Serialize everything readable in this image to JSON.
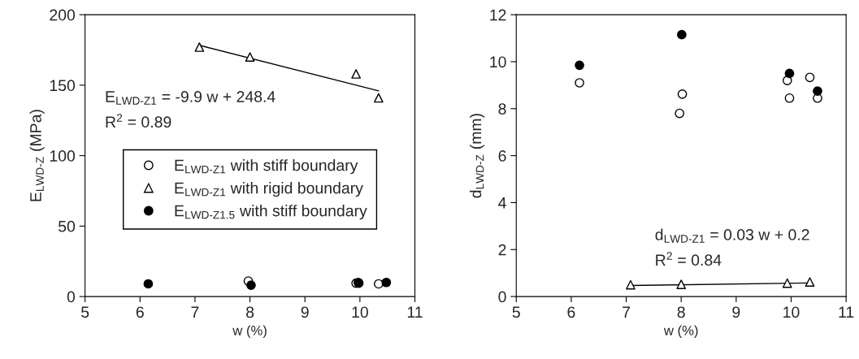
{
  "chart_data": [
    {
      "type": "scatter",
      "xlabel": "w (%)",
      "ylabel": "E$_{LWD‐Z}$ (MPa)",
      "xlim": [
        5,
        11
      ],
      "xticks": [
        5,
        6,
        7,
        8,
        9,
        10,
        11
      ],
      "ylim": [
        0,
        200
      ],
      "yticks": [
        0,
        50,
        100,
        150,
        200
      ],
      "grid": false,
      "legend": "center",
      "annotations": [
        "E$_{LWD‐Z1}$ = -9.9 w + 248.4",
        "R$^{2}$ = 0.89"
      ],
      "series": [
        {
          "name": "E$_{LWD‐Z1}$ with stiff boundary",
          "color": "#ffffff",
          "marker": "circle",
          "x": [
            7.97,
            9.93,
            9.97,
            10.34
          ],
          "values": [
            11,
            9.5,
            10,
            9
          ]
        },
        {
          "name": "E$_{LWD‐Z1}$ with rigid boundary",
          "color": "#ffffff",
          "marker": "triangle",
          "x": [
            7.08,
            8.0,
            9.93,
            10.34
          ],
          "values": [
            177,
            170,
            158,
            141
          ]
        },
        {
          "name": "E$_{LWD‐Z1.5}$ with stiff boundary",
          "color": "#000000",
          "marker": "circle",
          "x": [
            6.15,
            8.02,
            9.98,
            10.48
          ],
          "values": [
            9,
            8,
            9.5,
            10
          ]
        },
        {
          "type": "line",
          "color": "#000000",
          "marker": "none",
          "x": [
            7.08,
            10.34
          ],
          "values": [
            178.3,
            146.0
          ]
        }
      ]
    },
    {
      "type": "scatter",
      "xlabel": "w (%)",
      "ylabel": "d$_{LWD‐Z}$ (mm)",
      "xlim": [
        5,
        11
      ],
      "xticks": [
        5,
        6,
        7,
        8,
        9,
        10,
        11
      ],
      "ylim": [
        0,
        12
      ],
      "yticks": [
        0,
        2,
        4,
        6,
        8,
        10,
        12
      ],
      "grid": false,
      "annotations": [
        "d$_{LWD‐Z1}$ = 0.03 w + 0.2",
        "R$^{2}$ = 0.84"
      ],
      "series": [
        {
          "color": "#ffffff",
          "marker": "circle",
          "x": [
            6.15,
            7.97,
            8.02,
            9.93,
            9.97,
            10.34,
            10.48
          ],
          "values": [
            9.1,
            7.8,
            8.62,
            9.2,
            8.45,
            9.33,
            8.45
          ]
        },
        {
          "color": "#ffffff",
          "marker": "triangle",
          "x": [
            7.08,
            8.0,
            9.93,
            10.34
          ],
          "values": [
            0.5,
            0.52,
            0.57,
            0.62
          ]
        },
        {
          "color": "#000000",
          "marker": "circle",
          "x": [
            6.15,
            8.01,
            9.97,
            10.48
          ],
          "values": [
            9.85,
            11.15,
            9.5,
            8.75
          ]
        },
        {
          "type": "line",
          "color": "#000000",
          "marker": "none",
          "x": [
            7.08,
            10.34
          ],
          "values": [
            0.47,
            0.58
          ]
        }
      ]
    }
  ]
}
